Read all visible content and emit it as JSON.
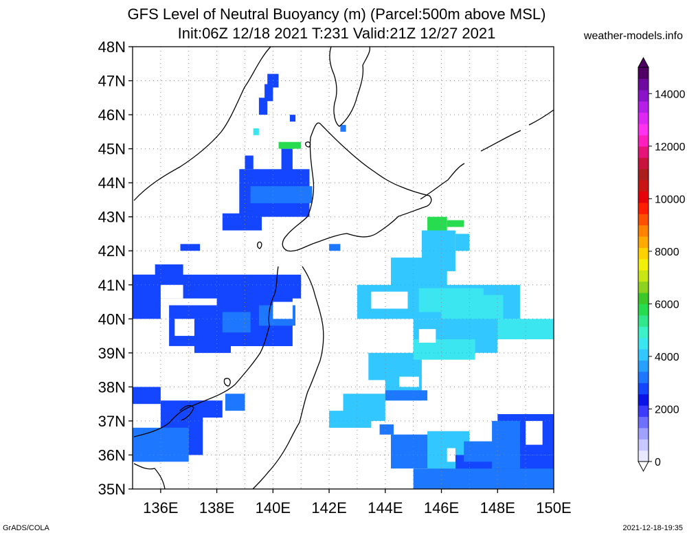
{
  "title_line1": "GFS Level of Neutral Buoyancy (m) (Parcel:500m above MSL)",
  "title_line2": "Init:06Z 12/18 2021 T:231 Valid:21Z 12/27 2021",
  "credit": "weather-models.info",
  "footer_left": "GrADS/COLA",
  "footer_right": "2021-12-18-19:35",
  "lat_labels": [
    "35N",
    "36N",
    "37N",
    "38N",
    "39N",
    "40N",
    "41N",
    "42N",
    "43N",
    "44N",
    "45N",
    "46N",
    "47N",
    "48N"
  ],
  "lon_labels": [
    "136E",
    "138E",
    "140E",
    "142E",
    "144E",
    "146E",
    "148E",
    "150E"
  ],
  "colorbar": {
    "labels": [
      "0",
      "2000",
      "4000",
      "6000",
      "8000",
      "10000",
      "12000",
      "14000"
    ],
    "min": 0,
    "max": 15000,
    "colors": [
      "#e8e8ff",
      "#c8c8ff",
      "#a0a0ff",
      "#7070ff",
      "#3c3cff",
      "#0a14e6",
      "#1446ff",
      "#1e78ff",
      "#28a0ff",
      "#32c8ff",
      "#3ce6f0",
      "#3cf0c8",
      "#32e68c",
      "#28dc50",
      "#3cc828",
      "#8cd21e",
      "#c8e614",
      "#f0f00a",
      "#ffd200",
      "#ffaa00",
      "#ff8200",
      "#ff5000",
      "#ff1e00",
      "#e6000a",
      "#c81414",
      "#aa1e1e",
      "#c8143c",
      "#e61478",
      "#ff1ebe",
      "#ff32f0",
      "#dc28f0",
      "#b41ee6",
      "#8c14c8",
      "#6e0aa0",
      "#500064"
    ]
  },
  "map": {
    "lon_range": [
      135,
      150
    ],
    "lat_range": [
      35,
      48
    ],
    "field_colors": {
      "low": "#1446ff",
      "mid": "#1e78ff",
      "cyan": "#32c8ff",
      "aqua": "#3ce6f0",
      "green": "#28dc50"
    }
  }
}
